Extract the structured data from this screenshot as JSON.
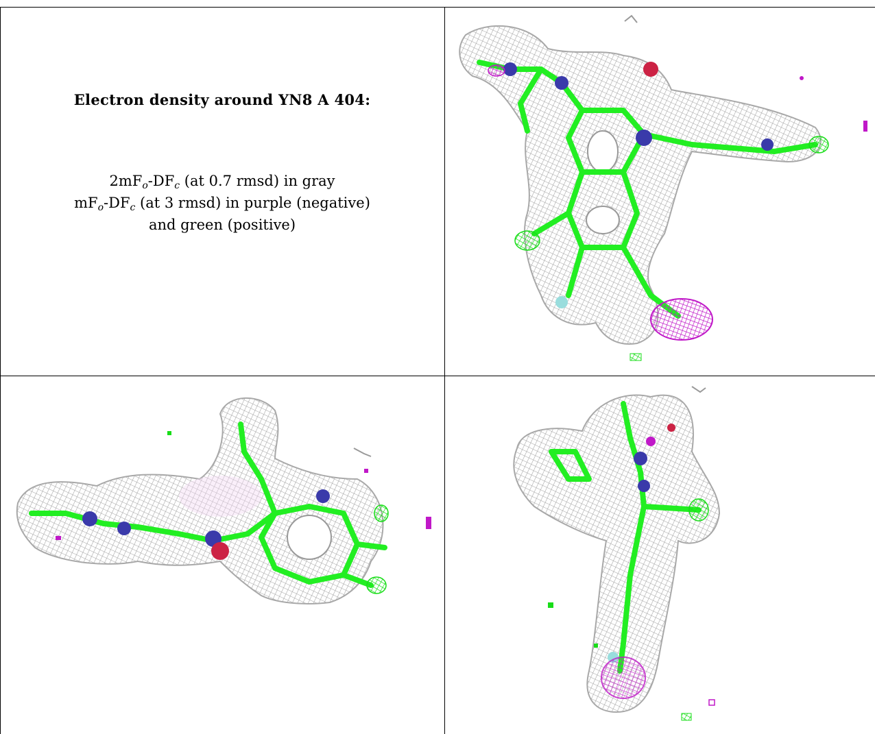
{
  "caption": {
    "title": "Electron density around YN8 A 404:",
    "line1": {
      "pre": "2mF",
      "sub1": "o",
      "mid": "-DF",
      "sub2": "c",
      "post": " (at 0.7 rmsd) in gray"
    },
    "line2": {
      "pre": "mF",
      "sub1": "o",
      "mid": "-DF",
      "sub2": "c",
      "post": " (at 3 rmsd) in purple (negative)"
    },
    "line3": "and green (positive)"
  },
  "colors": {
    "mesh_gray": "#9a9a9a",
    "negative_purple": "#d020d0",
    "positive_green": "#22ee22",
    "nitrogen_blue": "#3a3aaa",
    "oxygen_red": "#cc2244",
    "fluorine_cyan": "#99dddd"
  },
  "panels": [
    {
      "id": "view-top-right"
    },
    {
      "id": "view-bottom-left"
    },
    {
      "id": "view-bottom-right"
    }
  ]
}
